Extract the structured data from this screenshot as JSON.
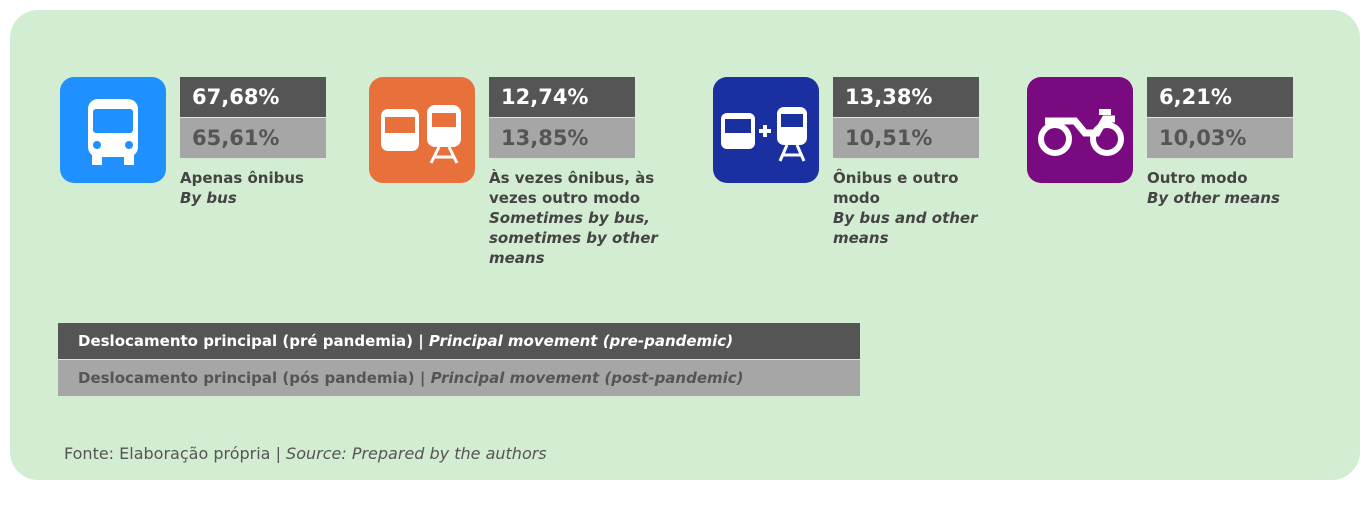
{
  "items": [
    {
      "pre": "67,68%",
      "post": "65,61%",
      "label_pt": "Apenas ônibus",
      "label_en": "By bus"
    },
    {
      "pre": "12,74%",
      "post": "13,85%",
      "label_pt": "Às vezes ônibus, às vezes outro modo",
      "label_en": "Sometimes by bus, sometimes by other means"
    },
    {
      "pre": "13,38%",
      "post": "10,51%",
      "label_pt": "Ônibus e outro modo",
      "label_en": "By bus and other means"
    },
    {
      "pre": "6,21%",
      "post": "10,03%",
      "label_pt": "Outro modo",
      "label_en": "By other means"
    }
  ],
  "legend": [
    {
      "pt": "Deslocamento principal (pré pandemia) | ",
      "en": "Principal movement (pre-pandemic)"
    },
    {
      "pt": "Deslocamento principal (pós pandemia) | ",
      "en": "Principal movement (post-pandemic)"
    }
  ],
  "source": {
    "pt": "Fonte: Elaboração própria | ",
    "en": "Source: Prepared by the authors"
  }
}
